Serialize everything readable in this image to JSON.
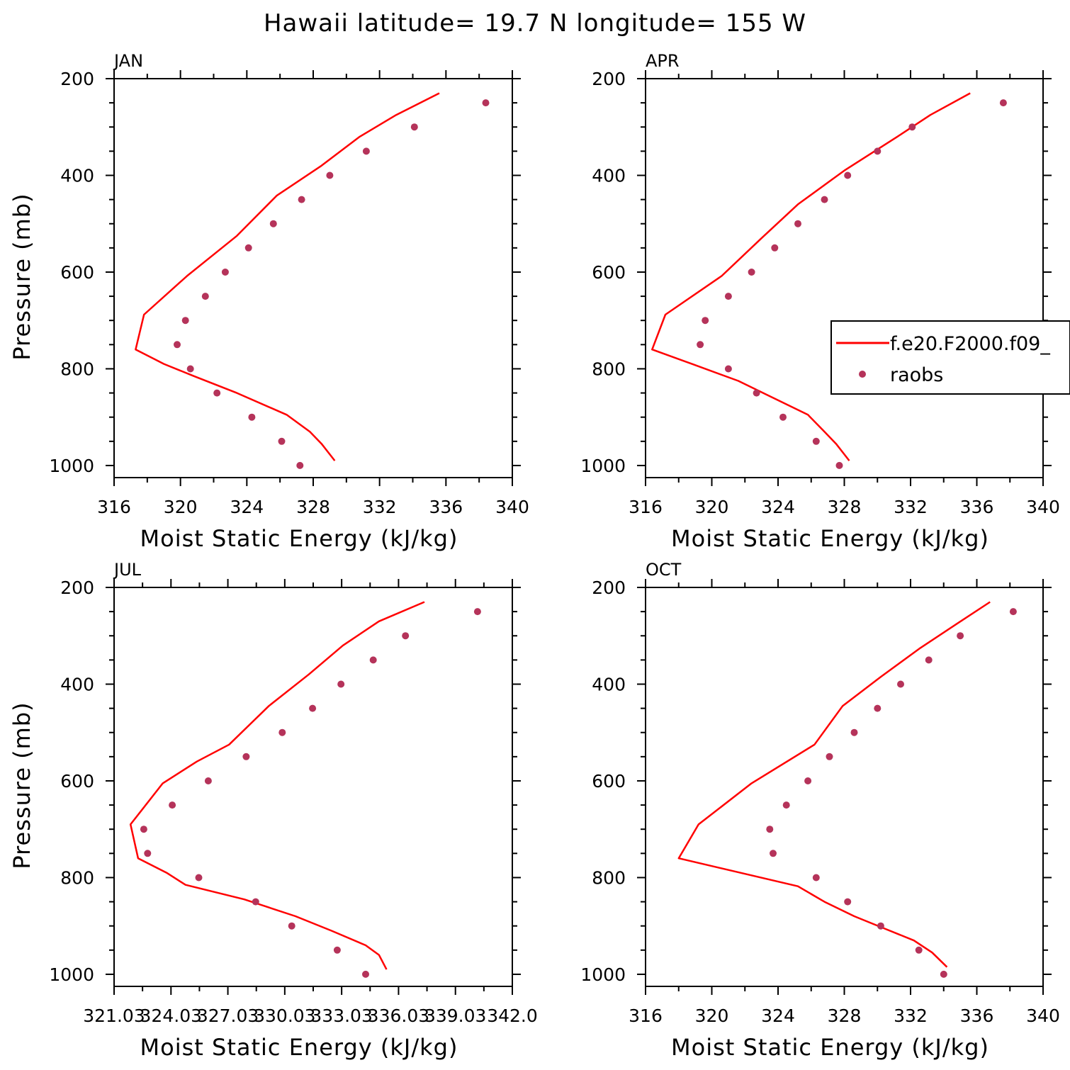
{
  "title": "Hawaii  latitude= 19.7 N longitude= 155 W",
  "legend": {
    "model_label": "f.e20.F2000.f09_",
    "obs_label": "raobs"
  },
  "colors": {
    "model_line": "#ff0000",
    "obs_marker": "#b5335a"
  },
  "chart_data": [
    {
      "type": "line",
      "panel": "JAN",
      "title": "JAN",
      "xlabel": "Moist Static Energy (kJ/kg)",
      "ylabel": "Pressure (mb)",
      "xlim": [
        316,
        340
      ],
      "ylim": [
        200,
        1025
      ],
      "y_inverted": true,
      "xticks": [
        316,
        320,
        324,
        328,
        332,
        336,
        340
      ],
      "xtick_labels": [
        "316",
        "320",
        "324",
        "328",
        "332",
        "336",
        "340"
      ],
      "yticks": [
        200,
        400,
        600,
        800,
        1000
      ],
      "ytick_labels": [
        "200",
        "400",
        "600",
        "800",
        "1000"
      ],
      "series": [
        {
          "name": "f.e20.F2000.f09_",
          "kind": "line",
          "x": [
            335.6,
            333.0,
            330.8,
            328.5,
            325.8,
            323.4,
            320.4,
            317.8,
            317.3,
            319.0,
            320.8,
            323.4,
            326.4,
            327.8,
            328.5,
            329.3
          ],
          "y": [
            230,
            275,
            320,
            380,
            442,
            525,
            608,
            688,
            760,
            790,
            815,
            850,
            895,
            930,
            955,
            990
          ]
        },
        {
          "name": "raobs",
          "kind": "scatter",
          "x": [
            338.4,
            334.1,
            331.2,
            329.0,
            327.3,
            325.6,
            324.1,
            322.7,
            321.5,
            320.3,
            319.8,
            320.6,
            322.2,
            324.3,
            326.1,
            327.2
          ],
          "y": [
            250,
            300,
            350,
            400,
            450,
            500,
            550,
            600,
            650,
            700,
            750,
            800,
            850,
            900,
            950,
            1000
          ]
        }
      ]
    },
    {
      "type": "line",
      "panel": "APR",
      "title": "APR",
      "xlabel": "Moist Static Energy (kJ/kg)",
      "ylabel": "",
      "xlim": [
        316,
        340
      ],
      "ylim": [
        200,
        1025
      ],
      "y_inverted": true,
      "xticks": [
        316,
        320,
        324,
        328,
        332,
        336,
        340
      ],
      "xtick_labels": [
        "316",
        "320",
        "324",
        "328",
        "332",
        "336",
        "340"
      ],
      "yticks": [
        200,
        400,
        600,
        800,
        1000
      ],
      "ytick_labels": [
        "200",
        "400",
        "600",
        "800",
        "1000"
      ],
      "legend_position": "right",
      "series": [
        {
          "name": "f.e20.F2000.f09_",
          "kind": "line",
          "x": [
            335.6,
            333.2,
            331.2,
            328.0,
            325.2,
            323.0,
            320.6,
            317.2,
            316.4,
            318.8,
            321.6,
            323.4,
            325.8,
            326.8,
            327.5,
            328.3
          ],
          "y": [
            230,
            275,
            320,
            390,
            460,
            530,
            608,
            688,
            760,
            790,
            825,
            855,
            895,
            930,
            955,
            990
          ]
        },
        {
          "name": "raobs",
          "kind": "scatter",
          "x": [
            337.6,
            332.1,
            330.0,
            328.2,
            326.8,
            325.2,
            323.8,
            322.4,
            321.0,
            319.6,
            319.3,
            321.0,
            322.7,
            324.3,
            326.3,
            327.7
          ],
          "y": [
            250,
            300,
            350,
            400,
            450,
            500,
            550,
            600,
            650,
            700,
            750,
            800,
            850,
            900,
            950,
            1000
          ]
        }
      ]
    },
    {
      "type": "line",
      "panel": "JUL",
      "title": "JUL",
      "xlabel": "Moist Static Energy (kJ/kg)",
      "ylabel": "Pressure (mb)",
      "xlim": [
        321.034,
        342.034
      ],
      "ylim": [
        200,
        1025
      ],
      "y_inverted": true,
      "xticks": [
        321.034,
        324.034,
        327.034,
        330.034,
        333.034,
        336.034,
        339.034,
        342.034
      ],
      "xtick_labels": [
        "321.03",
        "324.03",
        "327.03",
        "330.03",
        "333.03",
        "336.03",
        "339.03",
        "342.0"
      ],
      "yticks": [
        200,
        400,
        600,
        800,
        1000
      ],
      "ytick_labels": [
        "200",
        "400",
        "600",
        "800",
        "1000"
      ],
      "series": [
        {
          "name": "f.e20.F2000.f09_",
          "kind": "line",
          "x": [
            337.4,
            335.0,
            333.1,
            331.3,
            329.2,
            327.1,
            325.4,
            323.6,
            321.9,
            322.3,
            323.8,
            324.8,
            327.9,
            330.6,
            332.5,
            334.3,
            335.0,
            335.4
          ],
          "y": [
            230,
            270,
            320,
            380,
            445,
            525,
            560,
            605,
            690,
            760,
            790,
            815,
            845,
            880,
            910,
            940,
            960,
            990
          ]
        },
        {
          "name": "raobs",
          "kind": "scatter",
          "x": [
            340.2,
            336.4,
            334.7,
            333.0,
            331.5,
            329.9,
            328.0,
            326.0,
            324.1,
            322.6,
            322.8,
            325.5,
            328.5,
            330.4,
            332.8,
            334.3
          ],
          "y": [
            250,
            300,
            350,
            400,
            450,
            500,
            550,
            600,
            650,
            700,
            750,
            800,
            850,
            900,
            950,
            1000
          ]
        }
      ]
    },
    {
      "type": "line",
      "panel": "OCT",
      "title": "OCT",
      "xlabel": "Moist Static Energy (kJ/kg)",
      "ylabel": "",
      "xlim": [
        316,
        340
      ],
      "ylim": [
        200,
        1025
      ],
      "y_inverted": true,
      "xticks": [
        316,
        320,
        324,
        328,
        332,
        336,
        340
      ],
      "xtick_labels": [
        "316",
        "320",
        "324",
        "328",
        "332",
        "336",
        "340"
      ],
      "yticks": [
        200,
        400,
        600,
        800,
        1000
      ],
      "ytick_labels": [
        "200",
        "400",
        "600",
        "800",
        "1000"
      ],
      "series": [
        {
          "name": "f.e20.F2000.f09_",
          "kind": "line",
          "x": [
            336.8,
            334.8,
            332.6,
            330.2,
            327.9,
            326.2,
            322.4,
            319.2,
            318.0,
            325.2,
            326.8,
            328.6,
            330.4,
            332.2,
            333.3,
            334.2
          ],
          "y": [
            230,
            275,
            325,
            385,
            445,
            525,
            605,
            690,
            760,
            818,
            850,
            880,
            905,
            930,
            955,
            985
          ]
        },
        {
          "name": "raobs",
          "kind": "scatter",
          "x": [
            338.2,
            335.0,
            333.1,
            331.4,
            330.0,
            328.6,
            327.1,
            325.8,
            324.5,
            323.5,
            323.7,
            326.3,
            328.2,
            330.2,
            332.5,
            334.0
          ],
          "y": [
            250,
            300,
            350,
            400,
            450,
            500,
            550,
            600,
            650,
            700,
            750,
            800,
            850,
            900,
            950,
            1000
          ]
        }
      ]
    }
  ]
}
